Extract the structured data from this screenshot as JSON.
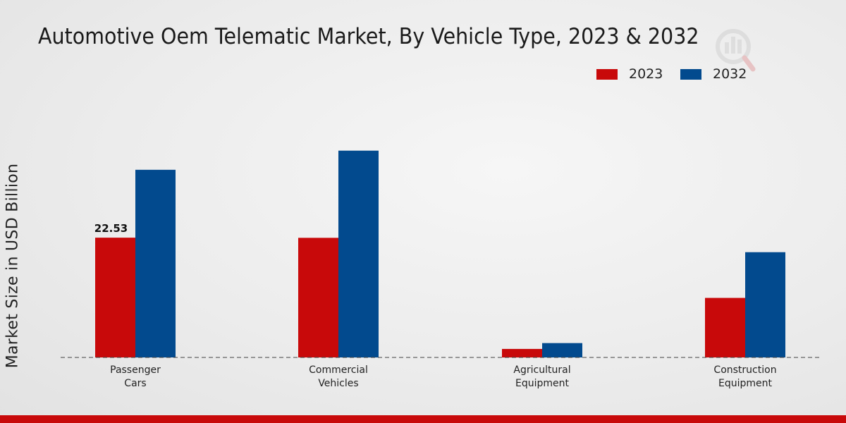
{
  "chart_data": {
    "type": "bar",
    "title": "Automotive Oem Telematic Market, By Vehicle Type, 2023 & 2032",
    "xlabel": "",
    "ylabel": "Market Size in USD Billion",
    "categories": [
      "Passenger Cars",
      "Commercial Vehicles",
      "Agricultural Equipment",
      "Construction Equipment"
    ],
    "category_lines": [
      [
        "Passenger",
        "Cars"
      ],
      [
        "Commercial",
        "Vehicles"
      ],
      [
        "Agricultural",
        "Equipment"
      ],
      [
        "Construction",
        "Equipment"
      ]
    ],
    "series": [
      {
        "name": "2023",
        "color": "#c8090a",
        "values": [
          22.53,
          22.5,
          1.6,
          11.2
        ]
      },
      {
        "name": "2032",
        "color": "#024a8e",
        "values": [
          35.3,
          38.9,
          2.7,
          19.8
        ]
      }
    ],
    "data_labels": [
      {
        "series": 0,
        "index": 0,
        "text": "22.53"
      }
    ],
    "ylim": [
      0,
      50
    ],
    "grid": false,
    "legend_position": "top-right"
  },
  "footer_color": "#c8090a"
}
